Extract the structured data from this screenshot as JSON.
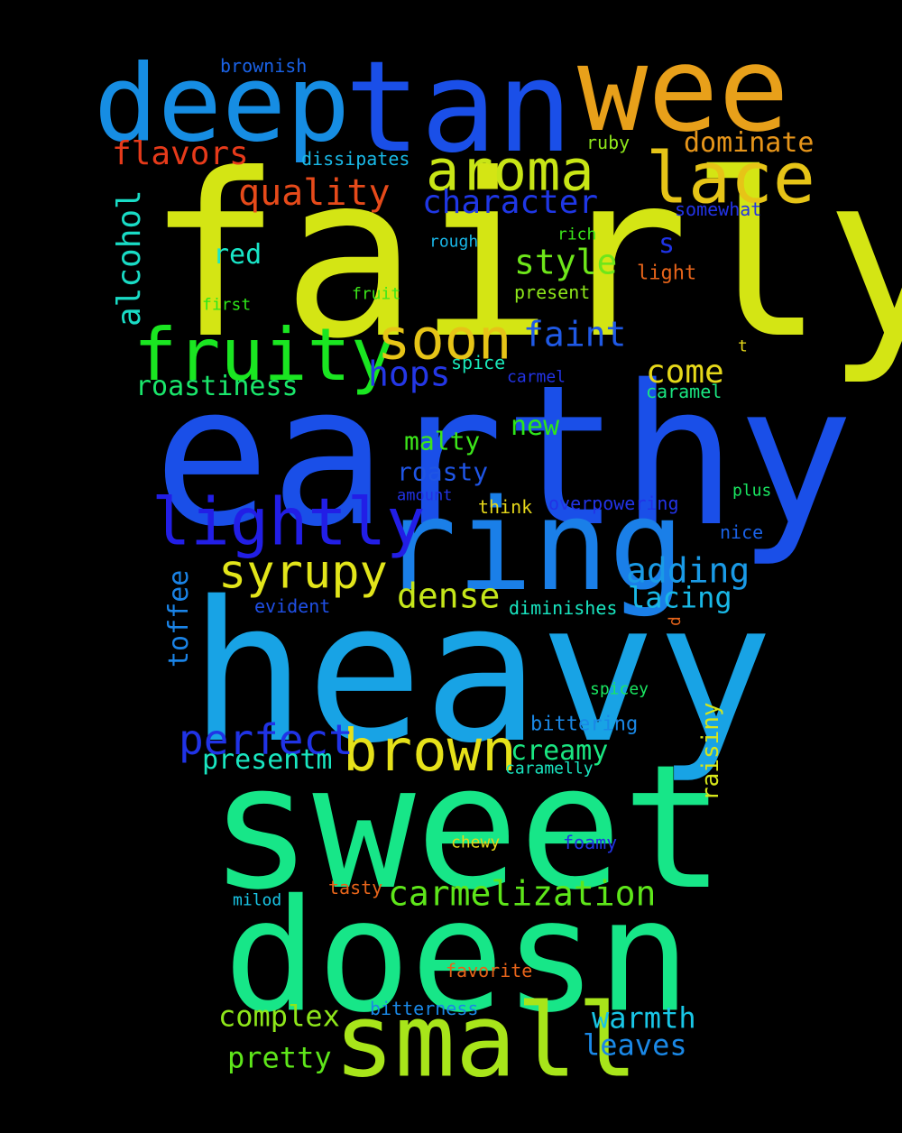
{
  "words": [
    {
      "text": "fairly",
      "color": "#d4e514"
    },
    {
      "text": "earthy",
      "color": "#1a4fe8"
    },
    {
      "text": "heavy",
      "color": "#18a3e5"
    },
    {
      "text": "sweet",
      "color": "#17e688"
    },
    {
      "text": "doesn",
      "color": "#17e688"
    },
    {
      "text": "ring",
      "color": "#1a7fe8"
    },
    {
      "text": "deep",
      "color": "#168de3"
    },
    {
      "text": "tan",
      "color": "#1a4fe8"
    },
    {
      "text": "wee",
      "color": "#e8a01a"
    },
    {
      "text": "small",
      "color": "#a8e51a"
    },
    {
      "text": "lace",
      "color": "#e6c417"
    },
    {
      "text": "aroma",
      "color": "#c8e516"
    },
    {
      "text": "fruity",
      "color": "#1ae621"
    },
    {
      "text": "soon",
      "color": "#e6c417"
    },
    {
      "text": "lightly",
      "color": "#221ee6"
    },
    {
      "text": "brown",
      "color": "#e6e11a"
    },
    {
      "text": "syrupy",
      "color": "#e2e51a"
    },
    {
      "text": "perfect",
      "color": "#2033e6"
    },
    {
      "text": "carmelization",
      "color": "#5ee61a"
    },
    {
      "text": "quality",
      "color": "#e64a1a"
    },
    {
      "text": "character",
      "color": "#1f37e5"
    },
    {
      "text": "flavors",
      "color": "#e63a1a"
    },
    {
      "text": "dominate",
      "color": "#e6951a"
    },
    {
      "text": "style",
      "color": "#6ee61a"
    },
    {
      "text": "faint",
      "color": "#1f59e5"
    },
    {
      "text": "hops",
      "color": "#2437e6"
    },
    {
      "text": "come",
      "color": "#e6d81a"
    },
    {
      "text": "adding",
      "color": "#1a9ae6"
    },
    {
      "text": "lacing",
      "color": "#19b8e6"
    },
    {
      "text": "dense",
      "color": "#c5e61a"
    },
    {
      "text": "roastiness",
      "color": "#1ae66b"
    },
    {
      "text": "alcohol",
      "color": "#19dbc5"
    },
    {
      "text": "toffee",
      "color": "#1a83e6"
    },
    {
      "text": "raisiny",
      "color": "#d6e61a"
    },
    {
      "text": "presentm",
      "color": "#19e6c1"
    },
    {
      "text": "creamy",
      "color": "#1ae681"
    },
    {
      "text": "complex",
      "color": "#8ee61a"
    },
    {
      "text": "pretty",
      "color": "#5ee61a"
    },
    {
      "text": "warmth",
      "color": "#19c6e6"
    },
    {
      "text": "leaves",
      "color": "#1a88e6"
    },
    {
      "text": "red",
      "color": "#19e6c8"
    },
    {
      "text": "s",
      "color": "#1f33e5"
    },
    {
      "text": "new",
      "color": "#2ee61a"
    },
    {
      "text": "malty",
      "color": "#3ce61a"
    },
    {
      "text": "roasty",
      "color": "#1f55e5"
    },
    {
      "text": "brownish",
      "color": "#1a62e6"
    },
    {
      "text": "dissipates",
      "color": "#19b8e6"
    },
    {
      "text": "ruby",
      "color": "#8ee61a"
    },
    {
      "text": "somewhat",
      "color": "#2233e6"
    },
    {
      "text": "rough",
      "color": "#19b6e6"
    },
    {
      "text": "rich",
      "color": "#3ae61a"
    },
    {
      "text": "light",
      "color": "#e6641a"
    },
    {
      "text": "present",
      "color": "#8ee61a"
    },
    {
      "text": "first",
      "color": "#2ee61a"
    },
    {
      "text": "fruit",
      "color": "#3ce61a"
    },
    {
      "text": "t",
      "color": "#e6d81a"
    },
    {
      "text": "spice",
      "color": "#19e6b8"
    },
    {
      "text": "carmel",
      "color": "#2233e6"
    },
    {
      "text": "caramel",
      "color": "#1ae681"
    },
    {
      "text": "amount",
      "color": "#2233e6"
    },
    {
      "text": "think",
      "color": "#e6d81a"
    },
    {
      "text": "overpowering",
      "color": "#2233e6"
    },
    {
      "text": "plus",
      "color": "#1ae661"
    },
    {
      "text": "nice",
      "color": "#1a62e6"
    },
    {
      "text": "evident",
      "color": "#1f4fe5"
    },
    {
      "text": "diminishes",
      "color": "#19e6c1"
    },
    {
      "text": "d",
      "color": "#e6641a"
    },
    {
      "text": "spicey",
      "color": "#1ae661"
    },
    {
      "text": "bittering",
      "color": "#1a88e6"
    },
    {
      "text": "caramelly",
      "color": "#19e6c1"
    },
    {
      "text": "chewy",
      "color": "#e6d81a"
    },
    {
      "text": "foamy",
      "color": "#2233e6"
    },
    {
      "text": "tasty",
      "color": "#e6641a"
    },
    {
      "text": "milod",
      "color": "#19c6e6"
    },
    {
      "text": "favorite",
      "color": "#e6641a"
    },
    {
      "text": "bitterness",
      "color": "#1a88e6"
    }
  ]
}
